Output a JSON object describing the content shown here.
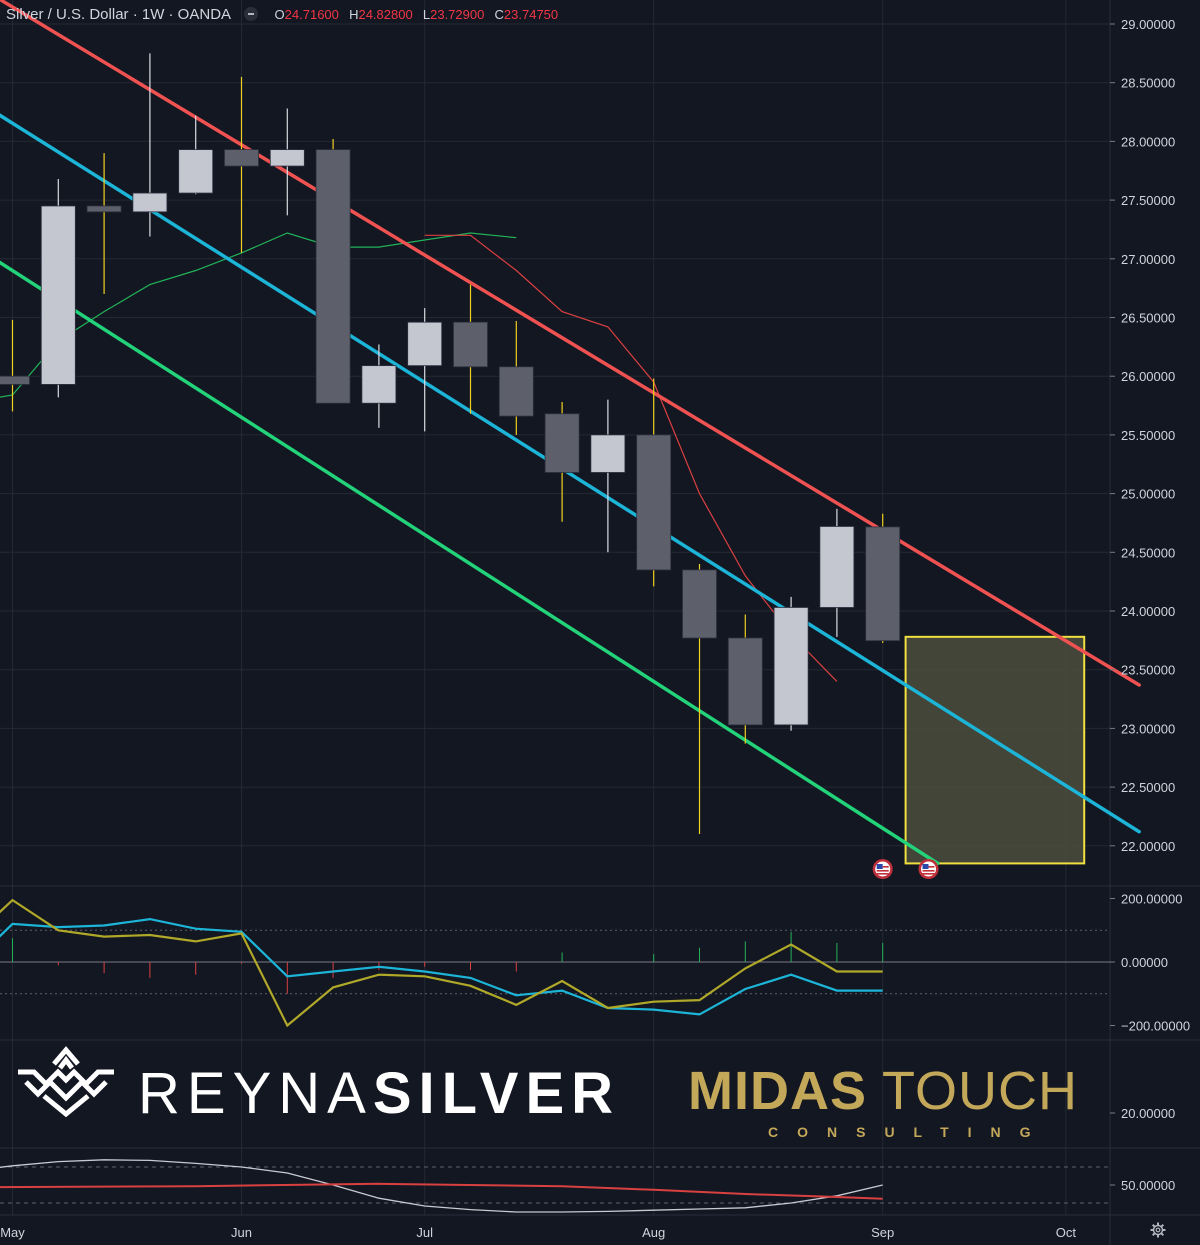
{
  "header": {
    "symbol": "Silver / U.S. Dollar · 1W · OANDA",
    "open_label": "O",
    "open_value": "24.71600",
    "high_label": "H",
    "high_value": "24.82800",
    "low_label": "L",
    "low_value": "23.72900",
    "close_label": "C",
    "close_value": "23.74750"
  },
  "colors": {
    "background": "#131722",
    "bull": "#c5c7d0",
    "bear": "#5d606b",
    "wick": "#f0d020",
    "channel_top": "#f05252",
    "channel_mid": "#1cb5d8",
    "channel_bottom": "#22d37a",
    "ma_green": "#22b358",
    "ma_red": "#d94040",
    "zone_border": "#f0e040",
    "zone_fill": "#4a4a3c"
  },
  "branding": {
    "reyna_thin": "REYNA",
    "reyna_bold": "SILVER",
    "midas_bold": "MIDAS",
    "midas_thin": "TOUCH",
    "consulting": "CONSULTING"
  },
  "chart_data": [
    {
      "type": "candlestick",
      "title": "Silver / U.S. Dollar · 1W · OANDA",
      "x_ticks": [
        "May",
        "Jun",
        "Jul",
        "Aug",
        "Sep",
        "Oct"
      ],
      "y_ticks": [
        "29.00000",
        "28.50000",
        "28.00000",
        "27.50000",
        "27.00000",
        "26.50000",
        "26.00000",
        "25.50000",
        "25.00000",
        "24.50000",
        "24.00000",
        "23.50000",
        "23.00000",
        "22.50000",
        "22.00000"
      ],
      "ylim": [
        21.65,
        29.1
      ],
      "x_week_range": [
        -1.3,
        24.6
      ],
      "candles": [
        {
          "week": 0,
          "open": 26.0,
          "high": 26.48,
          "low": 25.7,
          "close": 25.93
        },
        {
          "week": 1,
          "open": 25.93,
          "high": 27.68,
          "low": 25.82,
          "close": 27.45
        },
        {
          "week": 2,
          "open": 27.45,
          "high": 27.9,
          "low": 26.7,
          "close": 27.4
        },
        {
          "week": 3,
          "open": 27.4,
          "high": 28.75,
          "low": 27.19,
          "close": 27.56
        },
        {
          "week": 4,
          "open": 27.56,
          "high": 28.22,
          "low": 27.55,
          "close": 27.93
        },
        {
          "week": 5,
          "open": 27.93,
          "high": 28.55,
          "low": 27.05,
          "close": 27.79
        },
        {
          "week": 6,
          "open": 27.79,
          "high": 28.28,
          "low": 27.37,
          "close": 27.93
        },
        {
          "week": 7,
          "open": 27.93,
          "high": 28.02,
          "low": 25.77,
          "close": 25.77
        },
        {
          "week": 8,
          "open": 25.77,
          "high": 26.27,
          "low": 25.56,
          "close": 26.09
        },
        {
          "week": 9,
          "open": 26.09,
          "high": 26.58,
          "low": 25.53,
          "close": 26.46
        },
        {
          "week": 10,
          "open": 26.46,
          "high": 26.78,
          "low": 25.68,
          "close": 26.08
        },
        {
          "week": 11,
          "open": 26.08,
          "high": 26.47,
          "low": 25.5,
          "close": 25.66
        },
        {
          "week": 12,
          "open": 25.68,
          "high": 25.78,
          "low": 24.76,
          "close": 25.18
        },
        {
          "week": 13,
          "open": 25.18,
          "high": 25.8,
          "low": 24.5,
          "close": 25.5
        },
        {
          "week": 14,
          "open": 25.5,
          "high": 25.98,
          "low": 24.21,
          "close": 24.35
        },
        {
          "week": 15,
          "open": 24.35,
          "high": 24.4,
          "low": 22.1,
          "close": 23.77
        },
        {
          "week": 16,
          "open": 23.77,
          "high": 23.97,
          "low": 22.87,
          "close": 23.03
        },
        {
          "week": 17,
          "open": 23.03,
          "high": 24.12,
          "low": 22.98,
          "close": 24.03
        },
        {
          "week": 18,
          "open": 24.03,
          "high": 24.87,
          "low": 23.78,
          "close": 24.72
        },
        {
          "week": 19,
          "open": 24.716,
          "high": 24.828,
          "low": 23.729,
          "close": 23.7475
        }
      ],
      "channel": [
        {
          "name": "",
          "week_start": -1.3,
          "value_start": 29.45,
          "week_end": 24.6,
          "value_end": 23.37
        },
        {
          "name": "",
          "week_start": -1.0,
          "value_start": 28.4,
          "week_end": 24.6,
          "value_end": 22.12
        },
        {
          "name": "",
          "week_start": -1.0,
          "value_start": 27.15,
          "week_end": 20.2,
          "value_end": 21.85
        }
      ],
      "moving_averages": [
        {
          "name": "",
          "week": [
            -0.6,
            0,
            1,
            2,
            3,
            4,
            5,
            6,
            7,
            8,
            9,
            10,
            11
          ],
          "value": [
            25.8,
            25.84,
            26.3,
            26.55,
            26.78,
            26.9,
            27.05,
            27.22,
            27.1,
            27.1,
            27.16,
            27.22,
            27.18
          ]
        },
        {
          "name": "",
          "week": [
            9,
            10,
            11,
            12,
            13,
            14,
            15,
            16,
            17,
            18
          ],
          "value": [
            27.2,
            27.2,
            26.9,
            26.55,
            26.42,
            25.95,
            25.0,
            24.3,
            23.8,
            23.4
          ]
        }
      ],
      "target_zone": {
        "week_start": 19.5,
        "week_end": 23.4,
        "low": 21.85,
        "high": 23.78
      },
      "event_markers": [
        {
          "week": 19
        },
        {
          "week": 20
        }
      ]
    },
    {
      "type": "line",
      "y_ticks": [
        "200.00000",
        "0.00000",
        "−200.00000"
      ],
      "ylim": [
        -290,
        220
      ],
      "levels": [
        100,
        0,
        -100
      ],
      "series": [
        {
          "name": "",
          "color": "#1cb5d8",
          "week": [
            -1.3,
            -1,
            0,
            1,
            2,
            3,
            4,
            5,
            6,
            7,
            8,
            9,
            10,
            11,
            12,
            13,
            14,
            15,
            16,
            17,
            18,
            19
          ],
          "values": [
            -20,
            -20,
            120,
            110,
            115,
            135,
            105,
            95,
            -45,
            -30,
            -15,
            -30,
            -50,
            -105,
            -90,
            -145,
            -150,
            -165,
            -85,
            -40,
            -90,
            -90
          ]
        },
        {
          "name": "",
          "color": "#b0a828",
          "week": [
            -1.3,
            -1,
            0,
            1,
            2,
            3,
            4,
            5,
            6,
            7,
            8,
            9,
            10,
            11,
            12,
            13,
            14,
            15,
            16,
            17,
            18,
            19
          ],
          "values": [
            60,
            60,
            195,
            100,
            80,
            85,
            65,
            90,
            -200,
            -80,
            -40,
            -45,
            -75,
            -135,
            -60,
            -145,
            -125,
            -120,
            -20,
            55,
            -30,
            -30
          ]
        },
        {
          "name": "",
          "color": "#5d606b",
          "week": [
            -1.3,
            19
          ],
          "values": [
            0,
            0
          ]
        }
      ]
    },
    {
      "type": "line",
      "y_ticks": [
        "20.00000"
      ],
      "series": []
    },
    {
      "type": "line",
      "y_ticks": [
        "50.00000"
      ],
      "ylim": [
        0,
        100
      ],
      "levels": [
        80,
        20
      ],
      "series": [
        {
          "name": "",
          "color": "#c8cad2",
          "week": [
            -1.3,
            0,
            1,
            2,
            3,
            4,
            5,
            6,
            7,
            8,
            9,
            10,
            11,
            12,
            13,
            14,
            15,
            16,
            17,
            18,
            19
          ],
          "values": [
            70,
            82,
            89,
            92,
            91,
            86,
            80,
            70,
            50,
            28,
            15,
            9,
            5,
            5,
            6,
            8,
            10,
            12,
            20,
            32,
            50
          ]
        },
        {
          "name": "",
          "color": "#d94040",
          "week": [
            -1.3,
            4,
            8,
            12,
            14,
            16,
            18,
            19
          ],
          "values": [
            46,
            48,
            52,
            48,
            42,
            35,
            30,
            27
          ]
        }
      ]
    }
  ]
}
